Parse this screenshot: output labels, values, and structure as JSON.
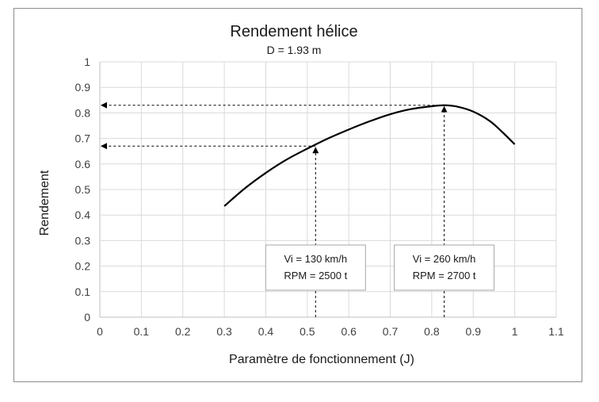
{
  "chart_data": {
    "type": "line",
    "title": "Rendement hélice",
    "subtitle": "D = 1.93 m",
    "xlabel": "Paramètre de fonctionnement (J)",
    "ylabel": "Rendement",
    "xlim": [
      0,
      1.1
    ],
    "ylim": [
      0,
      1
    ],
    "x_ticks": [
      0,
      0.1,
      0.2,
      0.3,
      0.4,
      0.5,
      0.6,
      0.7,
      0.8,
      0.9,
      1,
      1.1
    ],
    "y_ticks": [
      0,
      0.1,
      0.2,
      0.3,
      0.4,
      0.5,
      0.6,
      0.7,
      0.8,
      0.9,
      1
    ],
    "grid": true,
    "series": [
      {
        "x": [
          0.3,
          0.35,
          0.4,
          0.45,
          0.5,
          0.55,
          0.6,
          0.65,
          0.7,
          0.75,
          0.8,
          0.83,
          0.86,
          0.9,
          0.94,
          0.97,
          1.0
        ],
        "y": [
          0.435,
          0.505,
          0.565,
          0.617,
          0.66,
          0.7,
          0.735,
          0.767,
          0.795,
          0.815,
          0.826,
          0.83,
          0.825,
          0.805,
          0.768,
          0.725,
          0.677
        ],
        "color": "#000000"
      }
    ],
    "annotations": [
      {
        "x": 0.52,
        "y": 0.67,
        "lines": [
          "Vi = 130 km/h",
          "RPM = 2500 t"
        ]
      },
      {
        "x": 0.83,
        "y": 0.83,
        "lines": [
          "Vi = 260 km/h",
          "RPM = 2700 t"
        ]
      }
    ]
  },
  "colors": {
    "grid": "#d9d9d9",
    "axis": "#bfbfbf",
    "line": "#000000",
    "annotation_box_border": "#a6a6a6"
  }
}
